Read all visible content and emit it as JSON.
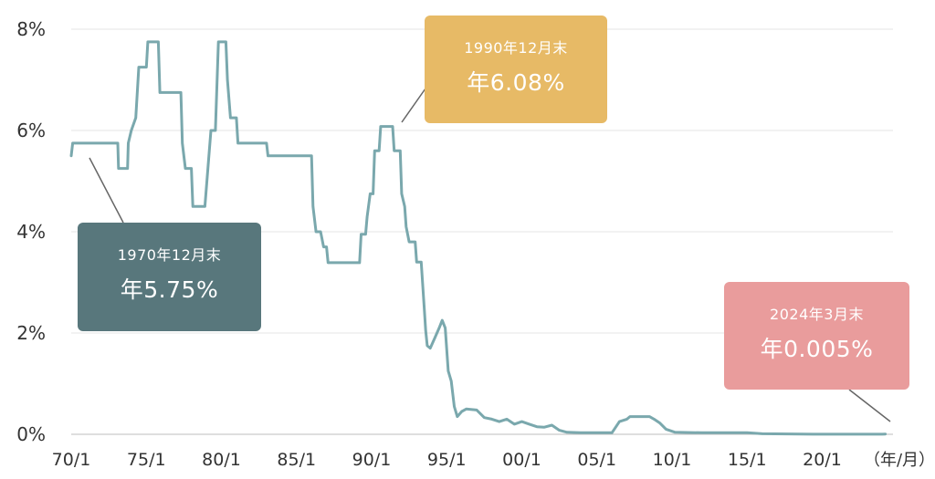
{
  "chart_data": {
    "type": "line",
    "y_axis": {
      "ticks": [
        0,
        2,
        4,
        6,
        8
      ],
      "tick_labels": [
        "0%",
        "2%",
        "4%",
        "6%",
        "8%"
      ],
      "ylim": [
        0,
        8
      ]
    },
    "x_axis": {
      "tick_labels": [
        "70/1",
        "75/1",
        "80/1",
        "85/1",
        "90/1",
        "95/1",
        "00/1",
        "05/1",
        "10/1",
        "15/1",
        "20/1"
      ],
      "tick_years": [
        1970,
        1975,
        1980,
        1985,
        1990,
        1995,
        2000,
        2005,
        2010,
        2015,
        2020
      ],
      "unit_label": "（年/月）",
      "xlim": [
        1970,
        2024.3
      ]
    },
    "grid": true,
    "series": [
      {
        "color": "#7aa8ad",
        "points": [
          [
            1970.0,
            5.5
          ],
          [
            1970.1,
            5.75
          ],
          [
            1973.1,
            5.75
          ],
          [
            1973.15,
            5.25
          ],
          [
            1973.75,
            5.25
          ],
          [
            1973.8,
            5.75
          ],
          [
            1974.0,
            6.0
          ],
          [
            1974.3,
            6.25
          ],
          [
            1974.5,
            7.25
          ],
          [
            1975.0,
            7.25
          ],
          [
            1975.1,
            7.75
          ],
          [
            1975.8,
            7.75
          ],
          [
            1975.9,
            6.75
          ],
          [
            1977.3,
            6.75
          ],
          [
            1977.4,
            5.75
          ],
          [
            1977.6,
            5.25
          ],
          [
            1978.0,
            5.25
          ],
          [
            1978.1,
            4.5
          ],
          [
            1978.9,
            4.5
          ],
          [
            1979.1,
            5.25
          ],
          [
            1979.3,
            6.0
          ],
          [
            1979.6,
            6.0
          ],
          [
            1979.8,
            7.75
          ],
          [
            1980.3,
            7.75
          ],
          [
            1980.4,
            7.0
          ],
          [
            1980.6,
            6.25
          ],
          [
            1981.0,
            6.25
          ],
          [
            1981.1,
            5.75
          ],
          [
            1983.0,
            5.75
          ],
          [
            1983.1,
            5.5
          ],
          [
            1984.0,
            5.5
          ],
          [
            1986.0,
            5.5
          ],
          [
            1986.1,
            4.5
          ],
          [
            1986.3,
            4.0
          ],
          [
            1986.6,
            4.0
          ],
          [
            1986.8,
            3.7
          ],
          [
            1987.0,
            3.7
          ],
          [
            1987.1,
            3.39
          ],
          [
            1988.0,
            3.39
          ],
          [
            1989.0,
            3.39
          ],
          [
            1989.2,
            3.39
          ],
          [
            1989.3,
            3.95
          ],
          [
            1989.6,
            3.95
          ],
          [
            1989.7,
            4.3
          ],
          [
            1989.9,
            4.75
          ],
          [
            1990.1,
            4.75
          ],
          [
            1990.2,
            5.6
          ],
          [
            1990.5,
            5.6
          ],
          [
            1990.6,
            6.08
          ],
          [
            1991.4,
            6.08
          ],
          [
            1991.5,
            5.6
          ],
          [
            1991.9,
            5.6
          ],
          [
            1992.0,
            4.75
          ],
          [
            1992.2,
            4.5
          ],
          [
            1992.3,
            4.1
          ],
          [
            1992.5,
            3.8
          ],
          [
            1992.9,
            3.8
          ],
          [
            1993.0,
            3.4
          ],
          [
            1993.3,
            3.4
          ],
          [
            1993.5,
            2.5
          ],
          [
            1993.6,
            2.05
          ],
          [
            1993.7,
            1.75
          ],
          [
            1993.9,
            1.7
          ],
          [
            1994.2,
            1.9
          ],
          [
            1994.5,
            2.1
          ],
          [
            1994.7,
            2.25
          ],
          [
            1994.9,
            2.1
          ],
          [
            1995.1,
            1.25
          ],
          [
            1995.3,
            1.05
          ],
          [
            1995.5,
            0.55
          ],
          [
            1995.7,
            0.35
          ],
          [
            1996.0,
            0.45
          ],
          [
            1996.3,
            0.5
          ],
          [
            1997.0,
            0.48
          ],
          [
            1997.5,
            0.33
          ],
          [
            1998.0,
            0.3
          ],
          [
            1998.5,
            0.25
          ],
          [
            1999.0,
            0.3
          ],
          [
            1999.5,
            0.2
          ],
          [
            2000.0,
            0.25
          ],
          [
            2000.5,
            0.2
          ],
          [
            2001.0,
            0.15
          ],
          [
            2001.5,
            0.14
          ],
          [
            2002.0,
            0.18
          ],
          [
            2002.5,
            0.08
          ],
          [
            2003.0,
            0.04
          ],
          [
            2004.0,
            0.03
          ],
          [
            2005.0,
            0.03
          ],
          [
            2006.0,
            0.03
          ],
          [
            2006.5,
            0.25
          ],
          [
            2007.0,
            0.3
          ],
          [
            2007.2,
            0.35
          ],
          [
            2008.5,
            0.35
          ],
          [
            2008.8,
            0.3
          ],
          [
            2009.2,
            0.22
          ],
          [
            2009.6,
            0.1
          ],
          [
            2010.2,
            0.04
          ],
          [
            2012.0,
            0.03
          ],
          [
            2015.0,
            0.03
          ],
          [
            2016.0,
            0.01
          ],
          [
            2020.0,
            0.001
          ],
          [
            2024.0,
            0.001
          ],
          [
            2024.2,
            0.005
          ]
        ]
      }
    ],
    "annotations": [
      {
        "date": "1970年12月末",
        "value": "年5.75%",
        "x": 1970.9,
        "y": 5.75,
        "color": "#58777c"
      },
      {
        "date": "1990年12月末",
        "value": "年6.08%",
        "x": 1991.0,
        "y": 6.08,
        "color": "#e7ba66"
      },
      {
        "date": "2024年3月末",
        "value": "年0.005%",
        "x": 2024.2,
        "y": 0.005,
        "color": "#e99c9c"
      }
    ]
  }
}
